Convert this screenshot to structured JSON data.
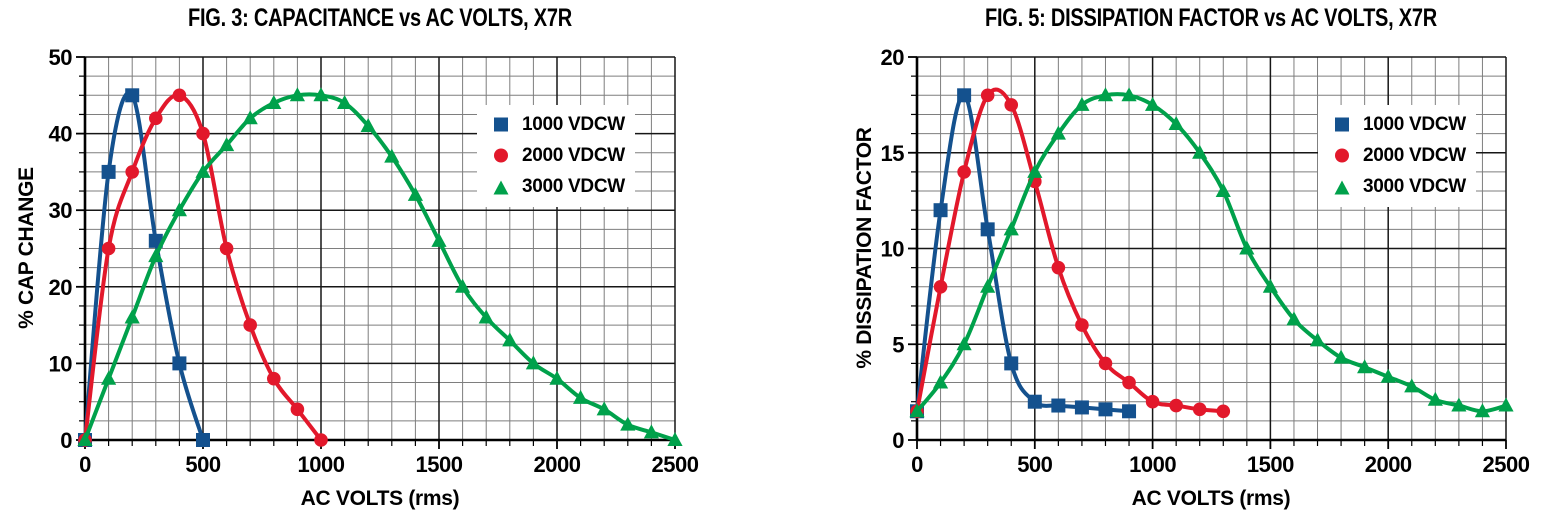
{
  "page": {
    "background": "#ffffff"
  },
  "chart_data": [
    {
      "type": "line",
      "title": "FIG. 3: CAPACITANCE vs AC VOLTS, X7R",
      "xlabel": "AC VOLTS (rms)",
      "ylabel": "% CAP CHANGE",
      "xlim": [
        0,
        2500
      ],
      "ylim": [
        0,
        50
      ],
      "x_major_ticks": [
        0,
        500,
        1000,
        1500,
        2000,
        2500
      ],
      "y_major_ticks": [
        0,
        10,
        20,
        30,
        40,
        50
      ],
      "x_minor_step": 100,
      "y_minor_step": 2.5,
      "grid": true,
      "grid_minor_color": "#7e7e7e",
      "grid_major_color": "#161616",
      "axis_color": "#000000",
      "legend_position": "upper right",
      "series": [
        {
          "name": "1000 VDCW",
          "color": "#14518e",
          "marker": "square",
          "x": [
            0,
            100,
            200,
            300,
            400,
            500
          ],
          "y": [
            0,
            35,
            45,
            26,
            10,
            0
          ]
        },
        {
          "name": "2000 VDCW",
          "color": "#e2182b",
          "marker": "circle",
          "x": [
            0,
            100,
            200,
            300,
            400,
            500,
            600,
            700,
            800,
            900,
            1000
          ],
          "y": [
            0,
            25,
            35,
            42,
            45,
            40,
            25,
            15,
            8,
            4,
            0
          ]
        },
        {
          "name": "3000 VDCW",
          "color": "#00a14b",
          "marker": "triangle",
          "x": [
            0,
            100,
            200,
            300,
            400,
            500,
            600,
            700,
            800,
            900,
            1000,
            1100,
            1200,
            1300,
            1400,
            1500,
            1600,
            1700,
            1800,
            1900,
            2000,
            2100,
            2200,
            2300,
            2400,
            2500
          ],
          "y": [
            0,
            8,
            16,
            24,
            30,
            35,
            38.5,
            42,
            44,
            45,
            45,
            44,
            41,
            37,
            32,
            26,
            20,
            16,
            13,
            10,
            8,
            5.5,
            4,
            2,
            1,
            0
          ]
        }
      ]
    },
    {
      "type": "line",
      "title": "FIG. 5: DISSIPATION FACTOR vs AC VOLTS, X7R",
      "xlabel": "AC VOLTS (rms)",
      "ylabel": "% DISSIPATION FACTOR",
      "xlim": [
        0,
        2500
      ],
      "ylim": [
        0,
        20
      ],
      "x_major_ticks": [
        0,
        500,
        1000,
        1500,
        2000,
        2500
      ],
      "y_major_ticks": [
        0,
        5,
        10,
        15,
        20
      ],
      "x_minor_step": 100,
      "y_minor_step": 1,
      "grid": true,
      "grid_minor_color": "#7e7e7e",
      "grid_major_color": "#161616",
      "axis_color": "#000000",
      "legend_position": "upper right",
      "series": [
        {
          "name": "1000 VDCW",
          "color": "#14518e",
          "marker": "square",
          "x": [
            0,
            100,
            200,
            300,
            400,
            500,
            600,
            700,
            800,
            900
          ],
          "y": [
            1.5,
            12,
            18,
            11,
            4,
            2,
            1.8,
            1.7,
            1.6,
            1.5
          ]
        },
        {
          "name": "2000 VDCW",
          "color": "#e2182b",
          "marker": "circle",
          "x": [
            0,
            100,
            200,
            300,
            400,
            500,
            600,
            700,
            800,
            900,
            1000,
            1100,
            1200,
            1300
          ],
          "y": [
            1.5,
            8,
            14,
            18,
            17.5,
            13.5,
            9,
            6,
            4,
            3,
            2,
            1.8,
            1.6,
            1.5
          ]
        },
        {
          "name": "3000 VDCW",
          "color": "#00a14b",
          "marker": "triangle",
          "x": [
            0,
            100,
            200,
            300,
            400,
            500,
            600,
            700,
            800,
            900,
            1000,
            1100,
            1200,
            1300,
            1400,
            1500,
            1600,
            1700,
            1800,
            1900,
            2000,
            2100,
            2200,
            2300,
            2400,
            2500
          ],
          "y": [
            1.5,
            3,
            5,
            8,
            11,
            14,
            16,
            17.5,
            18,
            18,
            17.5,
            16.5,
            15,
            13,
            10,
            8,
            6.3,
            5.2,
            4.3,
            3.8,
            3.3,
            2.8,
            2.1,
            1.8,
            1.5,
            1.8
          ]
        }
      ]
    }
  ]
}
